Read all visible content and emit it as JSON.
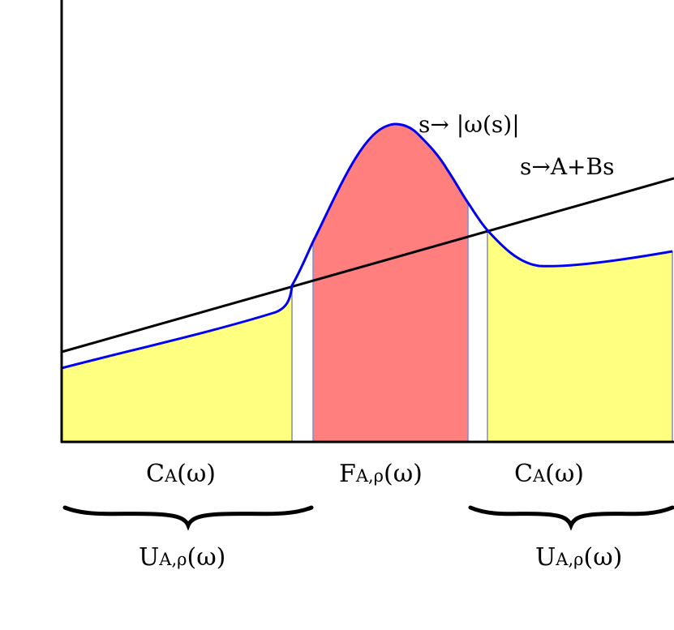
{
  "annotations": {
    "curve": "s→ |ω(s)|",
    "line": "s→A+Bs"
  },
  "regions": {
    "left_c": {
      "main": "C",
      "sub": "A",
      "tail": "(ω)"
    },
    "middle_f": {
      "main": "F",
      "sub": "A,ρ",
      "tail": "(ω)"
    },
    "right_c": {
      "main": "C",
      "sub": "A",
      "tail": "(ω)"
    }
  },
  "braces": {
    "left_u": {
      "main": "U",
      "sub": "A,ρ",
      "tail": "(ω)"
    },
    "right_u": {
      "main": "U",
      "sub": "A,ρ",
      "tail": "(ω)"
    }
  },
  "colors": {
    "c_region": "#ffff80",
    "f_region": "#ff7f7f",
    "curve": "#0000ee",
    "line": "#000000",
    "axis": "#000000"
  }
}
